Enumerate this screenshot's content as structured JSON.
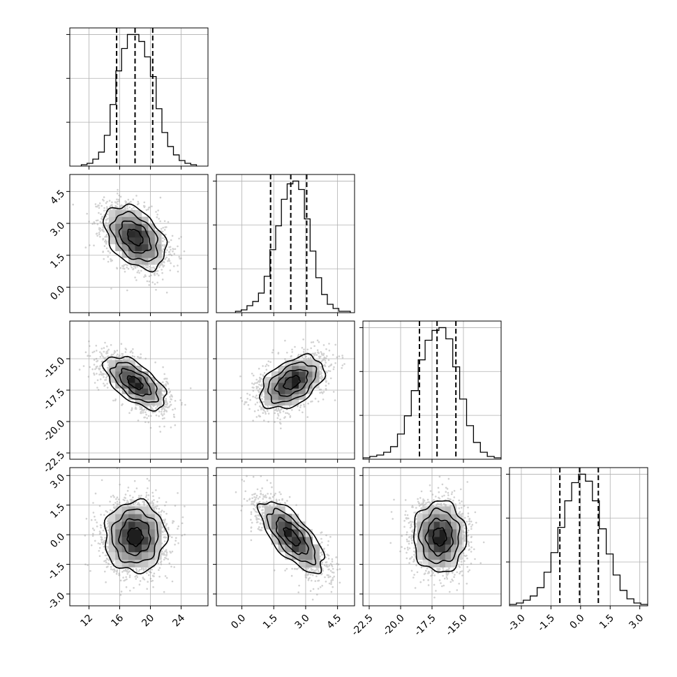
{
  "chart_data": {
    "type": "corner",
    "parameters": [
      {
        "mean": 18.0,
        "sd": 2.0,
        "range": [
          9.5,
          27.5
        ],
        "ticks": [
          "12",
          "16",
          "20",
          "24"
        ],
        "tick_values": [
          12,
          16,
          20,
          24
        ],
        "quantiles": [
          15.6,
          18.0,
          20.3
        ],
        "histogram": {
          "bin_start": 11.0,
          "bin_width": 0.75,
          "counts": [
            1,
            2,
            5,
            10,
            22,
            44,
            68,
            84,
            94,
            94,
            89,
            78,
            64,
            41,
            24,
            14,
            8,
            4,
            2,
            1
          ]
        }
      },
      {
        "mean": 2.35,
        "sd": 0.75,
        "range": [
          -1.2,
          5.3
        ],
        "ticks": [
          "0.0",
          "1.5",
          "3.0",
          "4.5"
        ],
        "tick_values": [
          0.0,
          1.5,
          3.0,
          4.5
        ],
        "quantiles": [
          1.35,
          2.3,
          3.05
        ],
        "histogram": {
          "bin_start": -0.3,
          "bin_width": 0.27,
          "counts": [
            1,
            2,
            5,
            8,
            14,
            26,
            45,
            62,
            81,
            92,
            94,
            88,
            67,
            44,
            25,
            13,
            6,
            3,
            1,
            1
          ]
        }
      },
      {
        "mean": -16.9,
        "sd": 1.05,
        "range": [
          -23.0,
          -12.0
        ],
        "ticks": [
          "-22.5",
          "-20.0",
          "-17.5",
          "-15.0"
        ],
        "tick_values": [
          -22.5,
          -20.0,
          -17.5,
          -15.0
        ],
        "quantiles": [
          -18.5,
          -17.1,
          -15.6
        ],
        "histogram": {
          "bin_start": -23.0,
          "bin_width": 0.55,
          "counts": [
            1,
            2,
            3,
            5,
            9,
            18,
            31,
            49,
            71,
            85,
            92,
            94,
            86,
            66,
            43,
            24,
            12,
            5,
            2,
            1
          ]
        }
      },
      {
        "mean": -0.1,
        "sd": 0.9,
        "range": [
          -3.6,
          3.4
        ],
        "ticks": [
          "-3.0",
          "-1.5",
          "0.0",
          "1.5",
          "3.0"
        ],
        "tick_values": [
          -3.0,
          -1.5,
          0.0,
          1.5,
          3.0
        ],
        "quantiles": [
          -1.05,
          -0.05,
          0.9
        ],
        "histogram": {
          "bin_start": -3.6,
          "bin_width": 0.35,
          "counts": [
            1,
            2,
            4,
            7,
            13,
            24,
            38,
            56,
            75,
            88,
            94,
            89,
            75,
            55,
            37,
            22,
            11,
            5,
            2,
            1
          ]
        }
      }
    ],
    "correlations": {
      "1-0": -0.4,
      "2-0": -0.6,
      "2-1": 0.45,
      "3-0": 0.0,
      "3-1": -0.7,
      "3-2": 0.0
    },
    "contour_levels_sigma": [
      0.5,
      1.0,
      1.5,
      2.0
    ],
    "grid": true
  }
}
